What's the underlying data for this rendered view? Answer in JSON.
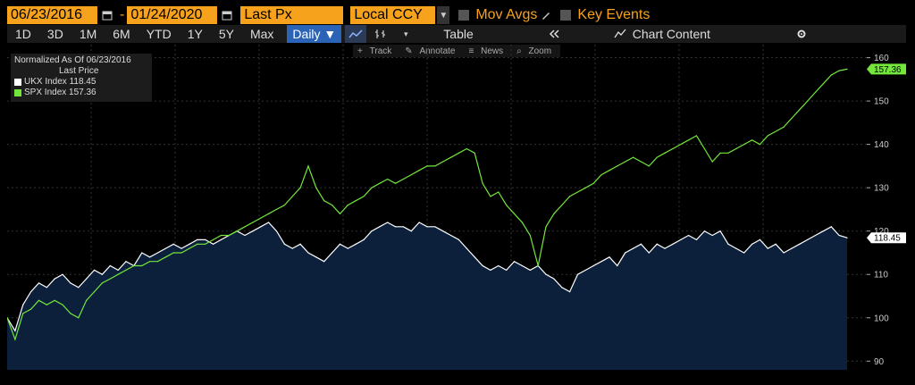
{
  "toolbar": {
    "start_date": "06/23/2016",
    "end_date": "01/24/2020",
    "dash": "-",
    "price_field": "Last Px",
    "currency": "Local CCY",
    "mov_avgs": "Mov Avgs",
    "key_events": "Key Events",
    "orange": "#f7a21c"
  },
  "periods": [
    "1D",
    "3D",
    "1M",
    "6M",
    "YTD",
    "1Y",
    "5Y",
    "Max"
  ],
  "frequency": "Daily ▼",
  "table_label": "Table",
  "chart_content": "Chart Content",
  "annot_bar": {
    "track": "Track",
    "annotate": "Annotate",
    "news": "News",
    "zoom": "Zoom"
  },
  "legend": {
    "title": "Normalized As Of 06/23/2016",
    "subtitle": "Last Price",
    "items": [
      {
        "label": "UKX Index 118.45",
        "color": "#ffffff"
      },
      {
        "label": "SPX Index 157.36",
        "color": "#73e83a"
      }
    ]
  },
  "chart_data": {
    "type": "line",
    "ylim": [
      88,
      163
    ],
    "yticks": [
      90,
      100,
      110,
      120,
      130,
      140,
      150,
      160
    ],
    "grid": true,
    "x_range": [
      "06/23/2016",
      "01/24/2020"
    ],
    "series": [
      {
        "name": "UKX Index",
        "color": "#ffffff",
        "fill": "#0c1f3b",
        "last": 118.45,
        "values": [
          100,
          97,
          103,
          106,
          108,
          107,
          109,
          110,
          108,
          107,
          109,
          111,
          110,
          112,
          111,
          113,
          112,
          115,
          114,
          115,
          116,
          117,
          116,
          117,
          118,
          118,
          117,
          118,
          119,
          120,
          119,
          120,
          121,
          122,
          120,
          117,
          116,
          117,
          115,
          114,
          113,
          115,
          117,
          116,
          117,
          118,
          120,
          121,
          122,
          121,
          121,
          120,
          122,
          121,
          121,
          120,
          119,
          118,
          116,
          114,
          112,
          111,
          112,
          111,
          113,
          112,
          111,
          112,
          110,
          109,
          107,
          106,
          110,
          111,
          112,
          113,
          114,
          112,
          115,
          116,
          117,
          115,
          117,
          116,
          117,
          118,
          119,
          118,
          120,
          119,
          120,
          117,
          116,
          115,
          117,
          118,
          116,
          117,
          115,
          116,
          117,
          118,
          119,
          120,
          121,
          119,
          118.45
        ]
      },
      {
        "name": "SPX Index",
        "color": "#73e83a",
        "last": 157.36,
        "values": [
          100,
          95,
          101,
          102,
          104,
          103,
          104,
          103,
          101,
          100,
          104,
          106,
          108,
          109,
          110,
          111,
          112,
          112,
          113,
          113,
          114,
          115,
          115,
          116,
          117,
          117,
          118,
          119,
          119,
          120,
          121,
          122,
          123,
          124,
          125,
          126,
          128,
          130,
          135,
          130,
          127,
          126,
          124,
          126,
          127,
          128,
          130,
          131,
          132,
          131,
          132,
          133,
          134,
          135,
          135,
          136,
          137,
          138,
          139,
          138,
          131,
          128,
          129,
          126,
          124,
          122,
          119,
          112,
          121,
          124,
          126,
          128,
          129,
          130,
          131,
          133,
          134,
          135,
          136,
          137,
          136,
          135,
          137,
          138,
          139,
          140,
          141,
          142,
          139,
          136,
          138,
          138,
          139,
          140,
          141,
          140,
          142,
          143,
          144,
          146,
          148,
          150,
          152,
          154,
          156,
          157,
          157.36
        ]
      }
    ]
  }
}
